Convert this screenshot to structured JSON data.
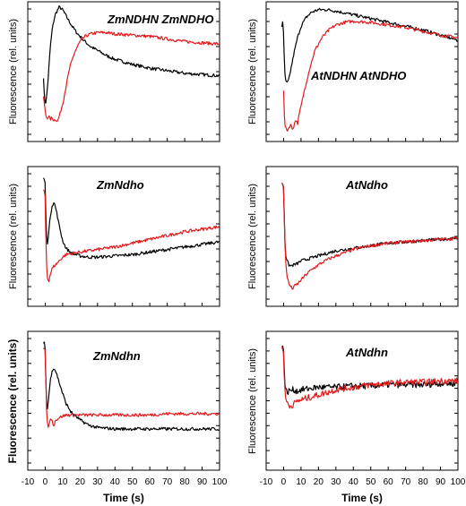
{
  "chart_data": [
    {
      "type": "line",
      "title": "ZmNDHN  ZmNDHO",
      "ylabel": "Fluorescence (rel. units)",
      "xlabel": "",
      "xlim": [
        -10,
        100
      ],
      "ylim": [
        0,
        1
      ],
      "series": [
        {
          "color": "#000000",
          "x": [
            -1,
            -0.5,
            0,
            0.5,
            1,
            2,
            3,
            4,
            5,
            6,
            8,
            10,
            12,
            15,
            18,
            22,
            26,
            30,
            35,
            40,
            50,
            60,
            70,
            80,
            90,
            100
          ],
          "y": [
            0.45,
            0.3,
            0.24,
            0.26,
            0.32,
            0.5,
            0.7,
            0.82,
            0.9,
            0.95,
            1.0,
            0.98,
            0.93,
            0.86,
            0.8,
            0.74,
            0.69,
            0.66,
            0.62,
            0.59,
            0.55,
            0.52,
            0.5,
            0.48,
            0.47,
            0.46
          ]
        },
        {
          "color": "#e41a1c",
          "x": [
            -1,
            -0.5,
            0,
            0.5,
            1,
            2,
            3,
            4,
            5,
            6,
            7,
            8,
            10,
            12,
            14,
            17,
            20,
            23,
            26,
            30,
            35,
            40,
            50,
            60,
            70,
            80,
            90,
            100
          ],
          "y": [
            0.3,
            0.24,
            0.18,
            0.14,
            0.13,
            0.14,
            0.12,
            0.13,
            0.11,
            0.12,
            0.1,
            0.14,
            0.24,
            0.38,
            0.52,
            0.65,
            0.73,
            0.77,
            0.79,
            0.8,
            0.8,
            0.79,
            0.78,
            0.77,
            0.75,
            0.73,
            0.72,
            0.71
          ]
        }
      ]
    },
    {
      "type": "line",
      "title": "AtNDHN   AtNDHO",
      "ylabel": "Fluorescence (rel. units)",
      "xlabel": "",
      "xlim": [
        -10,
        100
      ],
      "ylim": [
        0,
        1
      ],
      "series": [
        {
          "color": "#000000",
          "x": [
            -1,
            -0.5,
            0,
            0.5,
            1,
            2,
            3,
            4,
            6,
            8,
            10,
            13,
            16,
            20,
            25,
            30,
            40,
            50,
            60,
            70,
            80,
            90,
            100
          ],
          "y": [
            0.85,
            0.88,
            0.78,
            0.55,
            0.42,
            0.4,
            0.43,
            0.5,
            0.64,
            0.76,
            0.85,
            0.92,
            0.96,
            0.98,
            0.98,
            0.97,
            0.94,
            0.91,
            0.88,
            0.85,
            0.82,
            0.78,
            0.74
          ]
        },
        {
          "color": "#e41a1c",
          "x": [
            0,
            0.5,
            1,
            2,
            3,
            4,
            5,
            6,
            7,
            8,
            9,
            10,
            12,
            15,
            18,
            22,
            26,
            30,
            35,
            40,
            50,
            60,
            70,
            80,
            90,
            100
          ],
          "y": [
            0.35,
            0.12,
            0.05,
            0.03,
            0.05,
            0.08,
            0.04,
            0.07,
            0.12,
            0.08,
            0.16,
            0.22,
            0.35,
            0.52,
            0.66,
            0.76,
            0.82,
            0.86,
            0.88,
            0.89,
            0.88,
            0.86,
            0.84,
            0.81,
            0.78,
            0.76
          ]
        }
      ]
    },
    {
      "type": "line",
      "title": "ZmNdho",
      "ylabel": "Fluorescence (rel. units)",
      "xlabel": "",
      "xlim": [
        -10,
        100
      ],
      "ylim": [
        0,
        1
      ],
      "series": [
        {
          "color": "#000000",
          "x": [
            -1,
            -0.5,
            0,
            0.5,
            1,
            2,
            3,
            4,
            5,
            6,
            8,
            10,
            12,
            15,
            20,
            25,
            30,
            40,
            50,
            60,
            70,
            80,
            90,
            100
          ],
          "y": [
            0.95,
            0.94,
            0.9,
            0.6,
            0.42,
            0.52,
            0.66,
            0.74,
            0.76,
            0.72,
            0.58,
            0.46,
            0.4,
            0.36,
            0.34,
            0.33,
            0.33,
            0.34,
            0.35,
            0.37,
            0.39,
            0.41,
            0.43,
            0.45
          ]
        },
        {
          "color": "#e41a1c",
          "x": [
            -1,
            -0.5,
            0,
            0.5,
            1,
            2,
            3,
            4,
            5,
            6,
            8,
            10,
            12,
            15,
            20,
            25,
            30,
            40,
            50,
            60,
            70,
            80,
            90,
            100
          ],
          "y": [
            0.86,
            0.84,
            0.8,
            0.4,
            0.18,
            0.14,
            0.2,
            0.24,
            0.26,
            0.27,
            0.3,
            0.33,
            0.35,
            0.36,
            0.37,
            0.38,
            0.39,
            0.41,
            0.44,
            0.47,
            0.5,
            0.53,
            0.55,
            0.57
          ]
        }
      ]
    },
    {
      "type": "line",
      "title": "AtNdho",
      "ylabel": "Fluorescence (rel. units)",
      "xlabel": "",
      "xlim": [
        -10,
        100
      ],
      "ylim": [
        0,
        1
      ],
      "series": [
        {
          "color": "#000000",
          "x": [
            -1,
            -0.5,
            0,
            0.5,
            1,
            2,
            3,
            4,
            6,
            8,
            10,
            15,
            20,
            25,
            30,
            40,
            50,
            60,
            70,
            80,
            90,
            100
          ],
          "y": [
            0.9,
            0.91,
            0.88,
            0.6,
            0.36,
            0.3,
            0.27,
            0.26,
            0.27,
            0.28,
            0.3,
            0.32,
            0.34,
            0.36,
            0.38,
            0.4,
            0.42,
            0.44,
            0.45,
            0.46,
            0.47,
            0.48
          ]
        },
        {
          "color": "#e41a1c",
          "x": [
            -1,
            -0.5,
            0,
            0.5,
            1,
            2,
            3,
            4,
            5,
            6,
            8,
            10,
            12,
            15,
            20,
            25,
            30,
            40,
            50,
            60,
            70,
            80,
            90,
            100
          ],
          "y": [
            0.92,
            0.9,
            0.86,
            0.6,
            0.32,
            0.18,
            0.12,
            0.1,
            0.08,
            0.1,
            0.12,
            0.15,
            0.18,
            0.22,
            0.27,
            0.31,
            0.34,
            0.39,
            0.42,
            0.44,
            0.45,
            0.46,
            0.47,
            0.48
          ]
        }
      ]
    },
    {
      "type": "line",
      "title": "ZmNdhn",
      "ylabel": "Fluorescence (rel. units)",
      "xlabel": "Time (s)",
      "xlim": [
        -10,
        100
      ],
      "xticks": [
        -10,
        0,
        10,
        20,
        30,
        40,
        50,
        60,
        70,
        80,
        90,
        100
      ],
      "ylim": [
        0,
        1
      ],
      "series": [
        {
          "color": "#000000",
          "x": [
            -1,
            -0.5,
            0,
            0.5,
            1,
            2,
            3,
            4,
            5,
            6,
            8,
            10,
            12,
            15,
            20,
            25,
            30,
            40,
            50,
            60,
            70,
            80,
            90,
            100
          ],
          "y": [
            0.94,
            0.95,
            0.9,
            0.6,
            0.4,
            0.52,
            0.66,
            0.74,
            0.75,
            0.73,
            0.64,
            0.55,
            0.47,
            0.4,
            0.34,
            0.3,
            0.28,
            0.27,
            0.27,
            0.27,
            0.27,
            0.27,
            0.27,
            0.27
          ]
        },
        {
          "color": "#e41a1c",
          "x": [
            -1,
            -0.5,
            0,
            0.5,
            1,
            2,
            3,
            4,
            5,
            6,
            8,
            10,
            12,
            15,
            20,
            25,
            30,
            40,
            50,
            60,
            70,
            80,
            90,
            100
          ],
          "y": [
            0.9,
            0.91,
            0.88,
            0.58,
            0.32,
            0.28,
            0.36,
            0.33,
            0.3,
            0.34,
            0.36,
            0.37,
            0.38,
            0.38,
            0.38,
            0.38,
            0.38,
            0.38,
            0.38,
            0.38,
            0.39,
            0.39,
            0.39,
            0.39
          ]
        }
      ]
    },
    {
      "type": "line",
      "title": "AtNdhn",
      "ylabel": "Fluorescence (rel. units)",
      "xlabel": "Time (s)",
      "xlim": [
        -10,
        100
      ],
      "xticks": [
        -10,
        0,
        10,
        20,
        30,
        40,
        50,
        60,
        70,
        80,
        90,
        100
      ],
      "ylim": [
        0,
        1
      ],
      "series": [
        {
          "color": "#000000",
          "x": [
            -1,
            -0.5,
            0,
            0.5,
            1,
            2,
            3,
            5,
            8,
            10,
            15,
            20,
            30,
            40,
            50,
            60,
            70,
            80,
            90,
            100
          ],
          "y": [
            0.92,
            0.93,
            0.9,
            0.7,
            0.58,
            0.56,
            0.57,
            0.58,
            0.57,
            0.58,
            0.59,
            0.6,
            0.6,
            0.61,
            0.61,
            0.62,
            0.62,
            0.62,
            0.63,
            0.63
          ]
        },
        {
          "color": "#e41a1c",
          "x": [
            -1,
            -0.5,
            0,
            0.5,
            1,
            2,
            3,
            4,
            5,
            6,
            8,
            10,
            15,
            20,
            25,
            30,
            40,
            50,
            60,
            70,
            80,
            90,
            100
          ],
          "y": [
            0.92,
            0.9,
            0.88,
            0.62,
            0.52,
            0.48,
            0.46,
            0.45,
            0.46,
            0.47,
            0.49,
            0.5,
            0.52,
            0.54,
            0.56,
            0.58,
            0.6,
            0.62,
            0.63,
            0.64,
            0.64,
            0.65,
            0.65
          ]
        }
      ]
    }
  ]
}
